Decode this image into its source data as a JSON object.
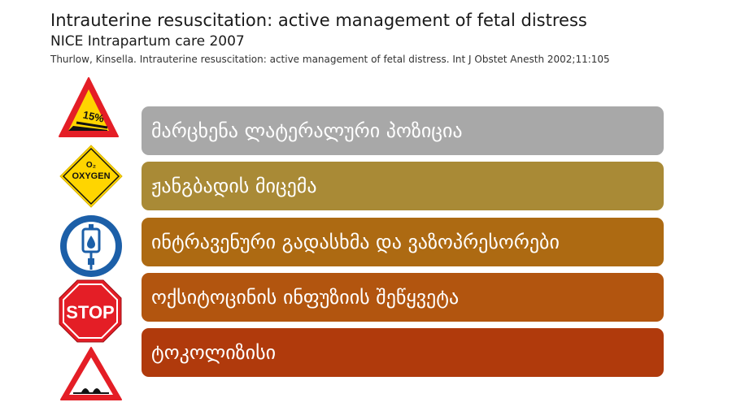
{
  "header": {
    "title": "Intrauterine resuscitation: active management of fetal distress",
    "subtitle": "NICE Intrapartum care 2007",
    "citation": "Thurlow, Kinsella. Intrauterine resuscitation: active management of fetal distress. Int J Obstet Anesth 2002;11:105"
  },
  "icons": {
    "slope": {
      "label": "15%",
      "icon": "slope-warning-icon"
    },
    "oxygen": {
      "label_top": "O₂",
      "label": "OXYGEN",
      "icon": "oxygen-warning-icon"
    },
    "iv": {
      "icon": "iv-drip-icon"
    },
    "stop": {
      "label": "STOP",
      "icon": "stop-sign-icon"
    },
    "bump": {
      "icon": "road-bump-warning-icon"
    }
  },
  "steps": [
    {
      "label": "მარცხენა ლატერალური პოზიცია",
      "color": "#a8a8a8"
    },
    {
      "label": "ჟანგბადის მიცემა",
      "color": "#a98a36"
    },
    {
      "label": "ინტრავენური გადასხმა და ვაზოპრესორები",
      "color": "#ad6a12"
    },
    {
      "label": "ოქსიტოცინის ინფუზიის შეწყვეტა",
      "color": "#b2550f"
    },
    {
      "label": "ტოკოლიზისი",
      "color": "#b03a0c"
    }
  ]
}
